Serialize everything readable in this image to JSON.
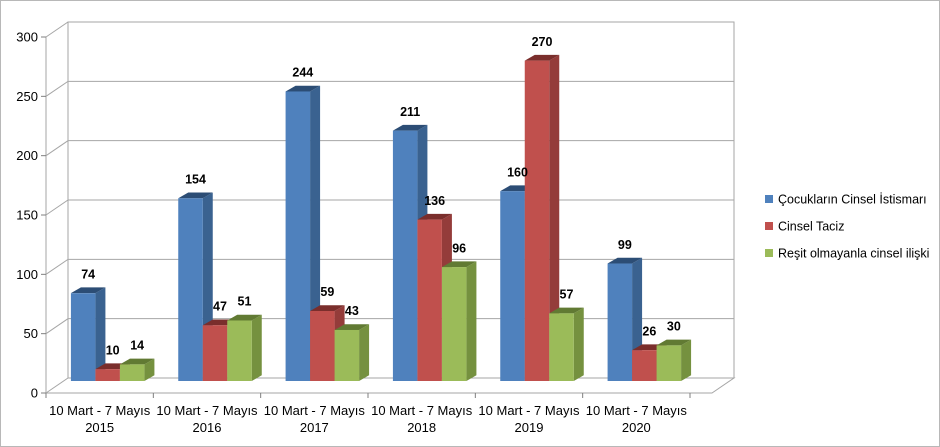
{
  "chart_data": {
    "type": "bar",
    "style": "3d-clustered-column",
    "categories": [
      [
        "10 Mart - 7 Mayıs",
        "2015"
      ],
      [
        "10 Mart - 7 Mayıs",
        "2016"
      ],
      [
        "10 Mart - 7 Mayıs",
        "2017"
      ],
      [
        "10 Mart - 7 Mayıs",
        "2018"
      ],
      [
        "10 Mart - 7 Mayıs",
        "2019"
      ],
      [
        "10 Mart - 7 Mayıs",
        "2020"
      ]
    ],
    "series": [
      {
        "name": "Çocukların Cinsel İstismarı",
        "color": "#4F81BD",
        "side": "#3A6290",
        "top": "#2C4D75",
        "values": [
          74,
          154,
          244,
          211,
          160,
          99
        ]
      },
      {
        "name": "Cinsel Taciz",
        "color": "#C0504D",
        "side": "#943C3A",
        "top": "#7A2E2C",
        "values": [
          10,
          47,
          59,
          136,
          270,
          26
        ]
      },
      {
        "name": "Reşit olmayanla cinsel ilişki",
        "color": "#9BBB59",
        "side": "#75913F",
        "top": "#617A33",
        "values": [
          14,
          51,
          43,
          96,
          57,
          30
        ]
      }
    ],
    "ylim": [
      0,
      300
    ],
    "yticks": [
      0,
      50,
      100,
      150,
      200,
      250,
      300
    ],
    "grid": true,
    "legend": "right",
    "data_labels": true,
    "title": "",
    "xlabel": "",
    "ylabel": ""
  }
}
